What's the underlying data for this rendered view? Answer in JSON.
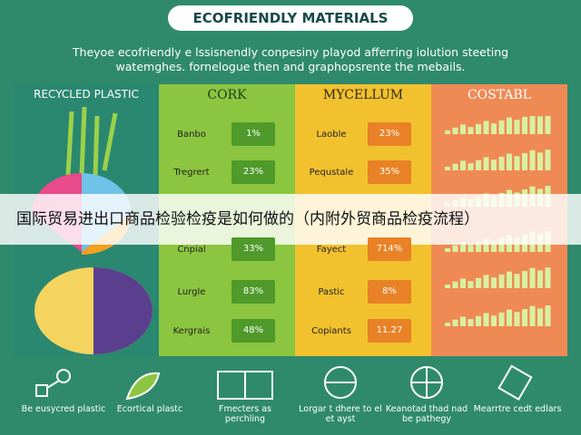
{
  "title": "ECOFRIENDLY MATERIALS",
  "subtitle": [
    "Theyoe ecofriendly e lssisnendly conpesiny playod afferring iolution steeting",
    "watemghes. fornelogue then and graphopsrente the mebails."
  ],
  "columns": [
    {
      "heading": "RECYCLED PLASTIC"
    },
    {
      "heading": "CORK",
      "rows": [
        {
          "label": "Banbo",
          "value": "1%"
        },
        {
          "label": "Tregrert",
          "value": "23%"
        },
        {
          "label": "Cnpial",
          "value": "33%"
        },
        {
          "label": "Lurgle",
          "value": "83%"
        },
        {
          "label": "Kergrais",
          "value": "48%"
        }
      ]
    },
    {
      "heading": "MYCELLUM",
      "rows": [
        {
          "label": "Laoble",
          "value": "23%"
        },
        {
          "label": "Pequstale",
          "value": "35%"
        },
        {
          "label": "Fayect",
          "value": "714%"
        },
        {
          "label": "Pastic",
          "value": "8%"
        },
        {
          "label": "Copiants",
          "value": "11.27"
        }
      ]
    },
    {
      "heading": "COSTABL"
    }
  ],
  "banner": "国际贸易进出口商品检验检疫是如何做的（内附外贸商品检疫流程）",
  "icons": [
    "Be eusycred plastic",
    "Ecortical plastc",
    "Fmecters as perchling",
    "Lorgar t dhere to el et ayst",
    "Keanotad thad nad be pathegy",
    "Mearrtre cedt edlars"
  ]
}
